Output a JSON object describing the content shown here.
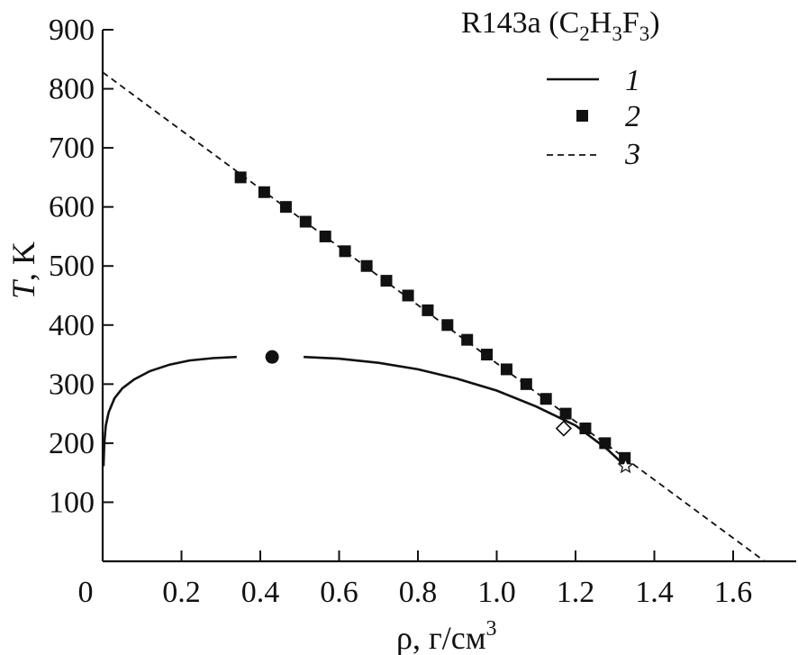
{
  "chart_data": {
    "type": "line",
    "title": {
      "base": "R143a (C",
      "sub1": "2",
      "mid1": "H",
      "sub2": "3",
      "mid2": "F",
      "sub3": "3",
      "end": ")"
    },
    "xlabel": {
      "symbol": "ρ",
      "unit": ", г/см",
      "sup": "3"
    },
    "ylabel": {
      "symbol": "T",
      "unit": ", K"
    },
    "xlim": [
      0,
      1.76
    ],
    "ylim": [
      0,
      900
    ],
    "xticks": [
      0.2,
      0.4,
      0.6,
      0.8,
      1.0,
      1.2,
      1.4,
      1.6
    ],
    "xtick_labels": [
      "0.2",
      "0.4",
      "0.6",
      "0.8",
      "1.0",
      "1.2",
      "1.4",
      "1.6"
    ],
    "origin_label": "0",
    "yticks": [
      100,
      200,
      300,
      400,
      500,
      600,
      700,
      800,
      900
    ],
    "ytick_labels": [
      "100",
      "200",
      "300",
      "400",
      "500",
      "600",
      "700",
      "800",
      "900"
    ],
    "legend": {
      "position": "top-right",
      "entries": [
        "1",
        "2",
        "3"
      ]
    },
    "grid": false,
    "series": [
      {
        "name": "1",
        "style": "solid",
        "segments": [
          [
            [
              0.002,
              161
            ],
            [
              0.004,
              200
            ],
            [
              0.008,
              230
            ],
            [
              0.015,
              252
            ],
            [
              0.03,
              276
            ],
            [
              0.05,
              293
            ],
            [
              0.08,
              308
            ],
            [
              0.12,
              322
            ],
            [
              0.17,
              333
            ],
            [
              0.22,
              340
            ],
            [
              0.28,
              344
            ],
            [
              0.34,
              346
            ]
          ],
          [
            [
              0.51,
              346
            ],
            [
              0.6,
              343
            ],
            [
              0.7,
              336
            ],
            [
              0.8,
              325
            ],
            [
              0.9,
              309
            ],
            [
              1.0,
              289
            ],
            [
              1.1,
              262
            ],
            [
              1.2,
              230
            ],
            [
              1.28,
              190
            ],
            [
              1.325,
              162
            ]
          ]
        ]
      },
      {
        "name": "2",
        "style": "markers",
        "x": [
          0.35,
          0.41,
          0.465,
          0.515,
          0.565,
          0.615,
          0.67,
          0.72,
          0.775,
          0.825,
          0.875,
          0.925,
          0.975,
          1.025,
          1.075,
          1.125,
          1.175,
          1.225,
          1.275,
          1.325
        ],
        "y": [
          650,
          625,
          600,
          575,
          550,
          525,
          500,
          475,
          450,
          425,
          400,
          375,
          350,
          325,
          300,
          275,
          250,
          225,
          200,
          175
        ]
      },
      {
        "name": "3",
        "style": "dashed",
        "x": [
          0,
          1.68
        ],
        "y": [
          828,
          0
        ]
      }
    ],
    "points": [
      {
        "name": "critical-point",
        "marker": "circle-filled",
        "x": 0.43,
        "y": 346
      },
      {
        "name": "diamond-point",
        "marker": "diamond-open",
        "x": 1.17,
        "y": 225
      },
      {
        "name": "triple-point",
        "marker": "star-open",
        "x": 1.327,
        "y": 161
      }
    ]
  }
}
